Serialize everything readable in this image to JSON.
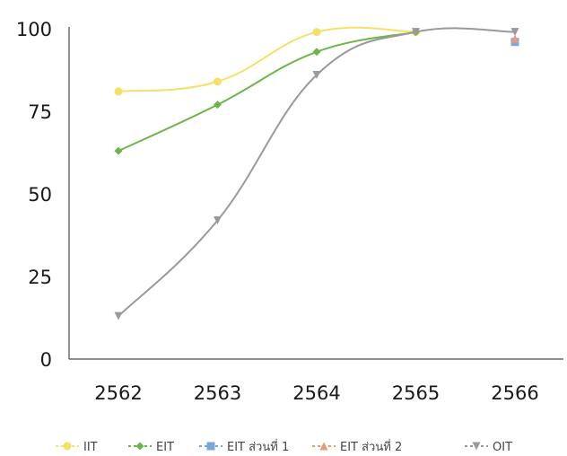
{
  "chart_data": {
    "type": "line",
    "categories": [
      "2562",
      "2563",
      "2564",
      "2565",
      "2566"
    ],
    "ylim": [
      0,
      100
    ],
    "yticks": [
      0,
      25,
      50,
      75,
      100
    ],
    "grid": false,
    "legend_position": "bottom",
    "series": [
      {
        "name": "IIT",
        "marker": "circle",
        "color": "#f5e06a",
        "values": [
          81,
          84,
          99,
          99,
          null
        ]
      },
      {
        "name": "EIT",
        "marker": "diamond",
        "color": "#6db54a",
        "values": [
          63,
          77,
          93,
          99,
          null
        ]
      },
      {
        "name": "EIT ส่วนที่ 1",
        "marker": "square",
        "color": "#7aa6d8",
        "values": [
          null,
          null,
          null,
          null,
          96
        ]
      },
      {
        "name": "EIT ส่วนที่ 2",
        "marker": "triangle",
        "color": "#e89b7a",
        "values": [
          null,
          null,
          null,
          null,
          97
        ]
      },
      {
        "name": "OIT",
        "marker": "triangle-down",
        "color": "#9a9a9a",
        "values": [
          13,
          42,
          86,
          99,
          99
        ]
      }
    ]
  }
}
